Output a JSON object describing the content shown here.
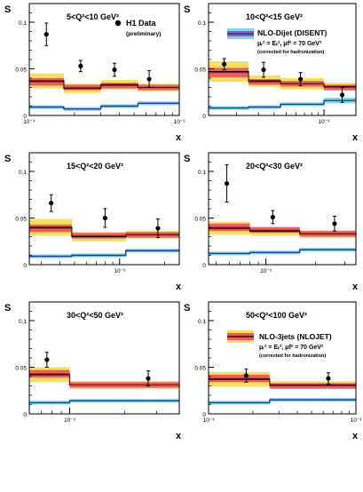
{
  "chart_data": [
    {
      "type": "line",
      "title": "5<Q²<10 GeV²",
      "ylabel": "S",
      "xlabel": "x",
      "x_scale": "log",
      "xlim": [
        0.0001,
        0.001
      ],
      "ylim": [
        0,
        0.12
      ],
      "x_tick_labels": [
        "10⁻⁴",
        "10⁻³"
      ],
      "y_tick_labels": [
        "0",
        "0.05",
        "0.1"
      ],
      "data_points": {
        "x": [
          0.00013,
          0.00022,
          0.00037,
          0.00063
        ],
        "y": [
          0.087,
          0.053,
          0.049,
          0.039
        ],
        "err": [
          0.012,
          0.006,
          0.007,
          0.009
        ]
      },
      "bin_edges": [
        0.0001,
        0.00017,
        0.0003,
        0.00053,
        0.001
      ],
      "nlo_dijet": [
        0.037,
        0.029,
        0.033,
        0.03
      ],
      "nlo_dijet_band": [
        0.008,
        0.005,
        0.005,
        0.004
      ],
      "nlo_3jets": [
        0.036,
        0.03,
        0.032,
        0.03
      ],
      "nlo_3jets_band": [
        0.004,
        0.003,
        0.003,
        0.003
      ],
      "lo": [
        0.009,
        0.007,
        0.01,
        0.013
      ],
      "lo_band": [
        0.002,
        0.002,
        0.002,
        0.002
      ]
    },
    {
      "type": "line",
      "title": "10<Q²<15 GeV²",
      "ylabel": "S",
      "xlabel": "x",
      "x_scale": "log",
      "xlim": [
        0.00012,
        0.0018
      ],
      "ylim": [
        0,
        0.12
      ],
      "x_tick_labels": [
        "10⁻³"
      ],
      "y_tick_labels": [
        "0",
        "0.05",
        "0.1"
      ],
      "data_points": {
        "x": [
          0.00016,
          0.00033,
          0.00065,
          0.0014
        ],
        "y": [
          0.055,
          0.049,
          0.039,
          0.022
        ],
        "err": [
          0.006,
          0.008,
          0.007,
          0.008
        ]
      },
      "bin_edges": [
        0.00012,
        0.00025,
        0.00045,
        0.001,
        0.0018
      ],
      "nlo_dijet": [
        0.047,
        0.037,
        0.034,
        0.031
      ],
      "nlo_dijet_band": [
        0.011,
        0.006,
        0.006,
        0.004
      ],
      "nlo_3jets": [
        0.046,
        0.036,
        0.034,
        0.03
      ],
      "nlo_3jets_band": [
        0.005,
        0.003,
        0.003,
        0.003
      ],
      "lo": [
        0.008,
        0.009,
        0.012,
        0.016
      ],
      "lo_band": [
        0.002,
        0.002,
        0.002,
        0.003
      ]
    },
    {
      "type": "line",
      "title": "15<Q²<20 GeV²",
      "ylabel": "S",
      "xlabel": "x",
      "x_scale": "log",
      "xlim": [
        0.00025,
        0.0025
      ],
      "ylim": [
        0,
        0.12
      ],
      "x_tick_labels": [
        "10⁻³"
      ],
      "y_tick_labels": [
        "0",
        "0.05",
        "0.1"
      ],
      "data_points": {
        "x": [
          0.00035,
          0.0008,
          0.0018
        ],
        "y": [
          0.066,
          0.05,
          0.039
        ],
        "err": [
          0.009,
          0.01,
          0.01
        ]
      },
      "bin_edges": [
        0.00025,
        0.00048,
        0.0011,
        0.0025
      ],
      "nlo_dijet": [
        0.04,
        0.03,
        0.032
      ],
      "nlo_dijet_band": [
        0.009,
        0.005,
        0.004
      ],
      "nlo_3jets": [
        0.039,
        0.031,
        0.032
      ],
      "nlo_3jets_band": [
        0.004,
        0.003,
        0.003
      ],
      "lo": [
        0.009,
        0.01,
        0.015
      ],
      "lo_band": [
        0.002,
        0.002,
        0.002
      ]
    },
    {
      "type": "line",
      "title": "20<Q²<30 GeV²",
      "ylabel": "S",
      "xlabel": "x",
      "x_scale": "log",
      "xlim": [
        0.00045,
        0.0035
      ],
      "ylim": [
        0,
        0.12
      ],
      "x_tick_labels": [
        "10⁻³"
      ],
      "y_tick_labels": [
        "0",
        "0.05",
        "0.1"
      ],
      "data_points": {
        "x": [
          0.00058,
          0.0011,
          0.0026
        ],
        "y": [
          0.087,
          0.051,
          0.044
        ],
        "err": [
          0.02,
          0.007,
          0.008
        ]
      },
      "bin_edges": [
        0.00045,
        0.0008,
        0.0016,
        0.0035
      ],
      "nlo_dijet": [
        0.039,
        0.036,
        0.033
      ],
      "nlo_dijet_band": [
        0.007,
        0.005,
        0.004
      ],
      "nlo_3jets": [
        0.04,
        0.037,
        0.033
      ],
      "nlo_3jets_band": [
        0.004,
        0.003,
        0.003
      ],
      "lo": [
        0.012,
        0.013,
        0.016
      ],
      "lo_band": [
        0.002,
        0.002,
        0.002
      ]
    },
    {
      "type": "line",
      "title": "30<Q²<50 GeV²",
      "ylabel": "S",
      "xlabel": "x",
      "x_scale": "log",
      "xlim": [
        0.0006,
        0.004
      ],
      "ylim": [
        0,
        0.12
      ],
      "x_tick_labels": [
        "10⁻³"
      ],
      "y_tick_labels": [
        "0",
        "0.05",
        "0.1"
      ],
      "data_points": {
        "x": [
          0.00075,
          0.0027
        ],
        "y": [
          0.058,
          0.038
        ],
        "err": [
          0.008,
          0.008
        ]
      },
      "bin_edges": [
        0.0006,
        0.001,
        0.004
      ],
      "nlo_dijet": [
        0.042,
        0.031
      ],
      "nlo_dijet_band": [
        0.008,
        0.004
      ],
      "nlo_3jets": [
        0.043,
        0.031
      ],
      "nlo_3jets_band": [
        0.004,
        0.003
      ],
      "lo": [
        0.012,
        0.014
      ],
      "lo_band": [
        0.002,
        0.002
      ]
    },
    {
      "type": "line",
      "title": "50<Q²<100 GeV²",
      "ylabel": "S",
      "xlabel": "x",
      "x_scale": "log",
      "xlim": [
        0.001,
        0.01
      ],
      "ylim": [
        0,
        0.12
      ],
      "x_tick_labels": [
        "10⁻³",
        "10⁻²"
      ],
      "y_tick_labels": [
        "0",
        "0.05",
        "0.1"
      ],
      "data_points": {
        "x": [
          0.0018,
          0.0065
        ],
        "y": [
          0.041,
          0.038
        ],
        "err": [
          0.007,
          0.006
        ]
      },
      "bin_edges": [
        0.001,
        0.0026,
        0.01
      ],
      "nlo_dijet": [
        0.037,
        0.031
      ],
      "nlo_dijet_band": [
        0.008,
        0.004
      ],
      "nlo_3jets": [
        0.038,
        0.03
      ],
      "nlo_3jets_band": [
        0.004,
        0.003
      ],
      "lo": [
        0.012,
        0.015
      ],
      "lo_band": [
        0.002,
        0.002
      ]
    }
  ],
  "legends": {
    "data": "H1 Data",
    "data_note": "(preliminary)",
    "dijet": "NLO-Dijet (DISENT)",
    "threejet": "NLO-3jets (NLOJET)",
    "scale": "μᵣ² = Eₜ², μf² = 70 GeV²",
    "hadr": "(corrected for hadronization)"
  },
  "colors": {
    "dijet_band": "#f6e05a",
    "threejet_band": "#ef5b5b",
    "central": "#000000",
    "lo_band": "#7fd6ef",
    "lo_line": "#1c3f9c",
    "legend_blue": "#5fa3e0",
    "legend_purple": "#8d5fb0"
  }
}
